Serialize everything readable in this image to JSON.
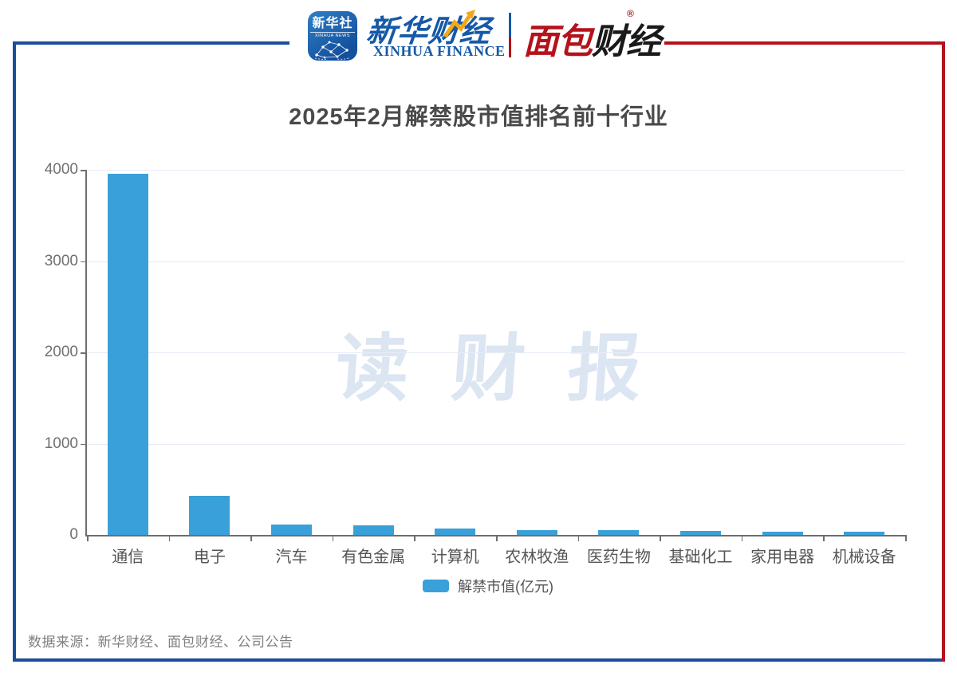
{
  "header": {
    "xinhua_news_badge": {
      "title": "新华社",
      "subtitle": "XINHUA NEWS"
    },
    "xinhua_finance": {
      "brand_cn": "新华财经",
      "brand_en": "XINHUA FINANCE"
    },
    "bread_finance": {
      "brand_red": "面包",
      "brand_black": "财经",
      "registered_mark": "®"
    }
  },
  "chart_data": {
    "type": "bar",
    "title": "2025年2月解禁股市值排名前十行业",
    "categories": [
      "通信",
      "电子",
      "汽车",
      "有色金属",
      "计算机",
      "农林牧渔",
      "医药生物",
      "基础化工",
      "家用电器",
      "机械设备"
    ],
    "series": [
      {
        "name": "解禁市值(亿元)",
        "values": [
          3960,
          430,
          115,
          108,
          70,
          55,
          52,
          45,
          38,
          35
        ]
      }
    ],
    "xlabel": "",
    "ylabel": "",
    "ylim": [
      0,
      4000
    ],
    "yticks": [
      0,
      1000,
      2000,
      3000,
      4000
    ],
    "grid": true,
    "legend_position": "bottom",
    "bar_color": "#3AA0D9",
    "watermark": "读 财 报"
  },
  "legend": {
    "label": "解禁市值(亿元)"
  },
  "footer": {
    "source_text": "数据来源：新华财经、面包财经、公司公告"
  },
  "colors": {
    "bar": "#3AA0D9",
    "frame_blue": "#1A4E9B",
    "frame_red": "#B5121B",
    "brand_blue": "#1559A8",
    "brand_red": "#B5121B",
    "grid_line": "#E6ECF7",
    "axis_line": "#6E6E6E",
    "title_text": "#4A4A4A",
    "tick_text": "#707070",
    "category_text": "#555555",
    "watermark_text": "#DCE5F2",
    "source_text": "#808080"
  }
}
